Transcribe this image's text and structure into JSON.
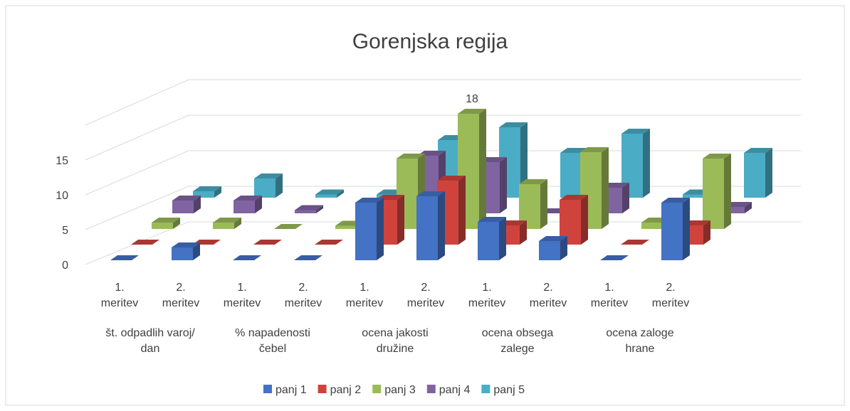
{
  "chart_data": {
    "type": "bar3d",
    "title": "Gorenjska regija",
    "categories": [
      "1. meritev",
      "2. meritev",
      "1. meritev",
      "2. meritev",
      "1. meritev",
      "2. meritev",
      "1. meritev",
      "2. meritev",
      "1. meritev",
      "2. meritev"
    ],
    "groups": [
      "št. odpadlih varoj/ dan",
      "% napadenosti čebel",
      "ocena jakosti družine",
      "ocena obsega zalege",
      "ocena zaloge hrane"
    ],
    "series": [
      {
        "name": "panj 1",
        "color": "#4472c4",
        "values": [
          0,
          2,
          0,
          0,
          9,
          10,
          6,
          3,
          0,
          9
        ]
      },
      {
        "name": "panj 2",
        "color": "#d0433d",
        "values": [
          0,
          0,
          0,
          0,
          7,
          10,
          3,
          7,
          0,
          3
        ]
      },
      {
        "name": "panj 3",
        "color": "#9bbb59",
        "values": [
          1,
          1,
          0,
          0.5,
          11,
          18,
          7,
          12,
          1,
          11
        ]
      },
      {
        "name": "panj 4",
        "color": "#8064a2",
        "values": [
          2,
          2,
          0.5,
          0,
          9,
          8,
          0,
          4,
          0,
          1
        ]
      },
      {
        "name": "panj 5",
        "color": "#4bacc6",
        "values": [
          1,
          3,
          0.5,
          0.5,
          9,
          11,
          7,
          10,
          0.5,
          7
        ]
      }
    ],
    "ylim": [
      0,
      20
    ],
    "yticks": [
      0,
      5,
      10,
      15
    ],
    "grid": true,
    "legend": "bottom"
  }
}
